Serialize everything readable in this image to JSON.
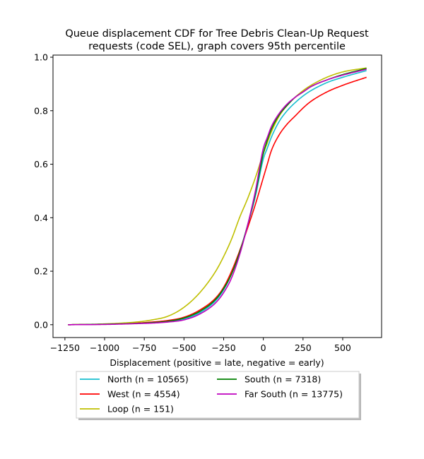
{
  "chart_data": {
    "type": "line",
    "title_lines": [
      "Queue displacement CDF for Tree Debris Clean-Up Request",
      "requests (code SEL), graph covers 95th percentile"
    ],
    "xlabel": "Displacement (positive = late, negative = early)",
    "ylabel": "",
    "xlim": [
      -1325,
      745
    ],
    "ylim": [
      -0.048,
      1.008
    ],
    "x_ticks": [
      -1250,
      -1000,
      -750,
      -500,
      -250,
      0,
      250,
      500
    ],
    "x_tick_labels": [
      "−1250",
      "−1000",
      "−750",
      "−500",
      "−250",
      "0",
      "250",
      "500"
    ],
    "y_ticks": [
      0.0,
      0.2,
      0.4,
      0.6,
      0.8,
      1.0
    ],
    "y_tick_labels": [
      "0.0",
      "0.2",
      "0.4",
      "0.6",
      "0.8",
      "1.0"
    ],
    "grid": false,
    "legend_placement": "below",
    "series": [
      {
        "name": "North (n = 10565)",
        "color": "#17becf",
        "x": [
          -1230,
          -1000,
          -800,
          -700,
          -600,
          -500,
          -400,
          -300,
          -250,
          -200,
          -150,
          -100,
          -50,
          0,
          25,
          50,
          100,
          150,
          200,
          250,
          300,
          400,
          500,
          650
        ],
        "y": [
          0.0,
          0.002,
          0.005,
          0.008,
          0.012,
          0.022,
          0.045,
          0.09,
          0.13,
          0.19,
          0.27,
          0.37,
          0.48,
          0.62,
          0.66,
          0.7,
          0.76,
          0.8,
          0.83,
          0.855,
          0.875,
          0.905,
          0.925,
          0.95
        ]
      },
      {
        "name": "West (n = 4554)",
        "color": "#ff0000",
        "x": [
          -1230,
          -1000,
          -800,
          -700,
          -600,
          -500,
          -400,
          -300,
          -250,
          -200,
          -150,
          -100,
          -50,
          0,
          25,
          50,
          100,
          150,
          200,
          250,
          300,
          400,
          500,
          650
        ],
        "y": [
          0.0,
          0.002,
          0.006,
          0.01,
          0.016,
          0.028,
          0.055,
          0.1,
          0.14,
          0.2,
          0.275,
          0.36,
          0.45,
          0.55,
          0.6,
          0.65,
          0.71,
          0.75,
          0.78,
          0.81,
          0.835,
          0.87,
          0.895,
          0.925
        ]
      },
      {
        "name": "Loop (n = 151)",
        "color": "#bfbf00",
        "x": [
          -1230,
          -1000,
          -800,
          -700,
          -600,
          -500,
          -400,
          -300,
          -250,
          -200,
          -150,
          -100,
          -50,
          0,
          25,
          50,
          100,
          150,
          200,
          250,
          300,
          400,
          500,
          650
        ],
        "y": [
          0.0,
          0.003,
          0.01,
          0.018,
          0.032,
          0.065,
          0.12,
          0.2,
          0.255,
          0.32,
          0.4,
          0.47,
          0.55,
          0.64,
          0.68,
          0.72,
          0.78,
          0.82,
          0.85,
          0.875,
          0.895,
          0.925,
          0.945,
          0.96
        ]
      },
      {
        "name": "South (n = 7318)",
        "color": "#008000",
        "x": [
          -1230,
          -1000,
          -800,
          -700,
          -600,
          -500,
          -400,
          -300,
          -250,
          -200,
          -150,
          -100,
          -50,
          0,
          25,
          50,
          100,
          150,
          200,
          250,
          300,
          400,
          500,
          650
        ],
        "y": [
          0.0,
          0.002,
          0.005,
          0.008,
          0.013,
          0.025,
          0.05,
          0.095,
          0.135,
          0.19,
          0.27,
          0.37,
          0.49,
          0.64,
          0.69,
          0.73,
          0.785,
          0.82,
          0.85,
          0.87,
          0.89,
          0.915,
          0.935,
          0.958
        ]
      },
      {
        "name": "Far South (n = 13775)",
        "color": "#bf00bf",
        "x": [
          -1230,
          -1000,
          -800,
          -700,
          -600,
          -500,
          -400,
          -300,
          -250,
          -200,
          -150,
          -100,
          -50,
          0,
          25,
          50,
          100,
          150,
          200,
          250,
          300,
          400,
          500,
          650
        ],
        "y": [
          0.0,
          0.001,
          0.004,
          0.006,
          0.01,
          0.018,
          0.04,
          0.082,
          0.12,
          0.175,
          0.26,
          0.37,
          0.5,
          0.66,
          0.7,
          0.74,
          0.79,
          0.825,
          0.85,
          0.87,
          0.89,
          0.915,
          0.933,
          0.955
        ]
      }
    ]
  }
}
